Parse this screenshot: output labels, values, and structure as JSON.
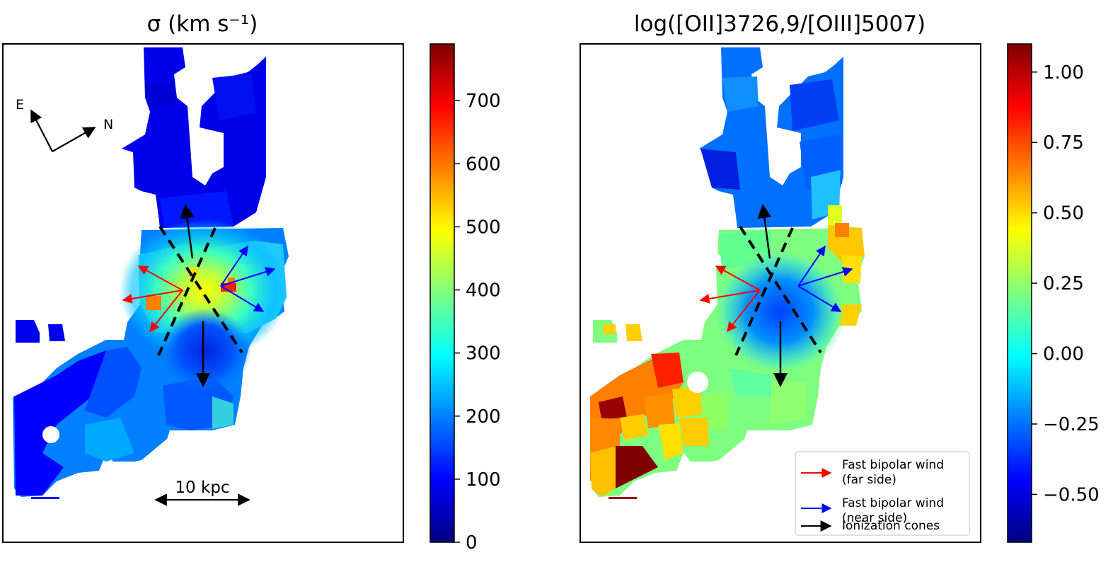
{
  "colors": {
    "jet": [
      "#00007f",
      "#0000ff",
      "#007fff",
      "#00ffff",
      "#7fff7f",
      "#ffff00",
      "#ff7f00",
      "#ff0000",
      "#7f0000"
    ],
    "far_side": "#ff0000",
    "near_side": "#0000ff",
    "cones": "#000000"
  },
  "chart_data": [
    {
      "type": "heatmap",
      "title": "σ (km s⁻¹)",
      "xlabel": "",
      "ylabel": "",
      "colorbar": {
        "range": [
          0,
          790
        ],
        "ticks": [
          0,
          100,
          200,
          300,
          400,
          500,
          600,
          700
        ],
        "tick_labels": [
          "0",
          "100",
          "200",
          "300",
          "400",
          "500",
          "600",
          "700"
        ]
      },
      "annotations": {
        "compass_east": "E",
        "compass_north": "N",
        "scale_bar": "10 kpc"
      }
    },
    {
      "type": "heatmap",
      "title": "log([OII]3726,9/[OIII]5007)",
      "xlabel": "",
      "ylabel": "",
      "colorbar": {
        "range": [
          -0.67,
          1.1
        ],
        "ticks": [
          -0.5,
          -0.25,
          0.0,
          0.25,
          0.5,
          0.75,
          1.0
        ],
        "tick_labels": [
          "−0.50",
          "−0.25",
          "0.00",
          "0.25",
          "0.50",
          "0.75",
          "1.00"
        ]
      },
      "legend": {
        "placement": "lower-right",
        "entries": [
          {
            "line1": "Fast bipolar wind",
            "line2": "(far side)",
            "color": "#ff0000"
          },
          {
            "line1": "Fast bipolar wind",
            "line2": "(near side)",
            "color": "#0000ff"
          },
          {
            "line1": "Ionization cones",
            "line2": "",
            "color": "#000000"
          }
        ]
      }
    }
  ]
}
